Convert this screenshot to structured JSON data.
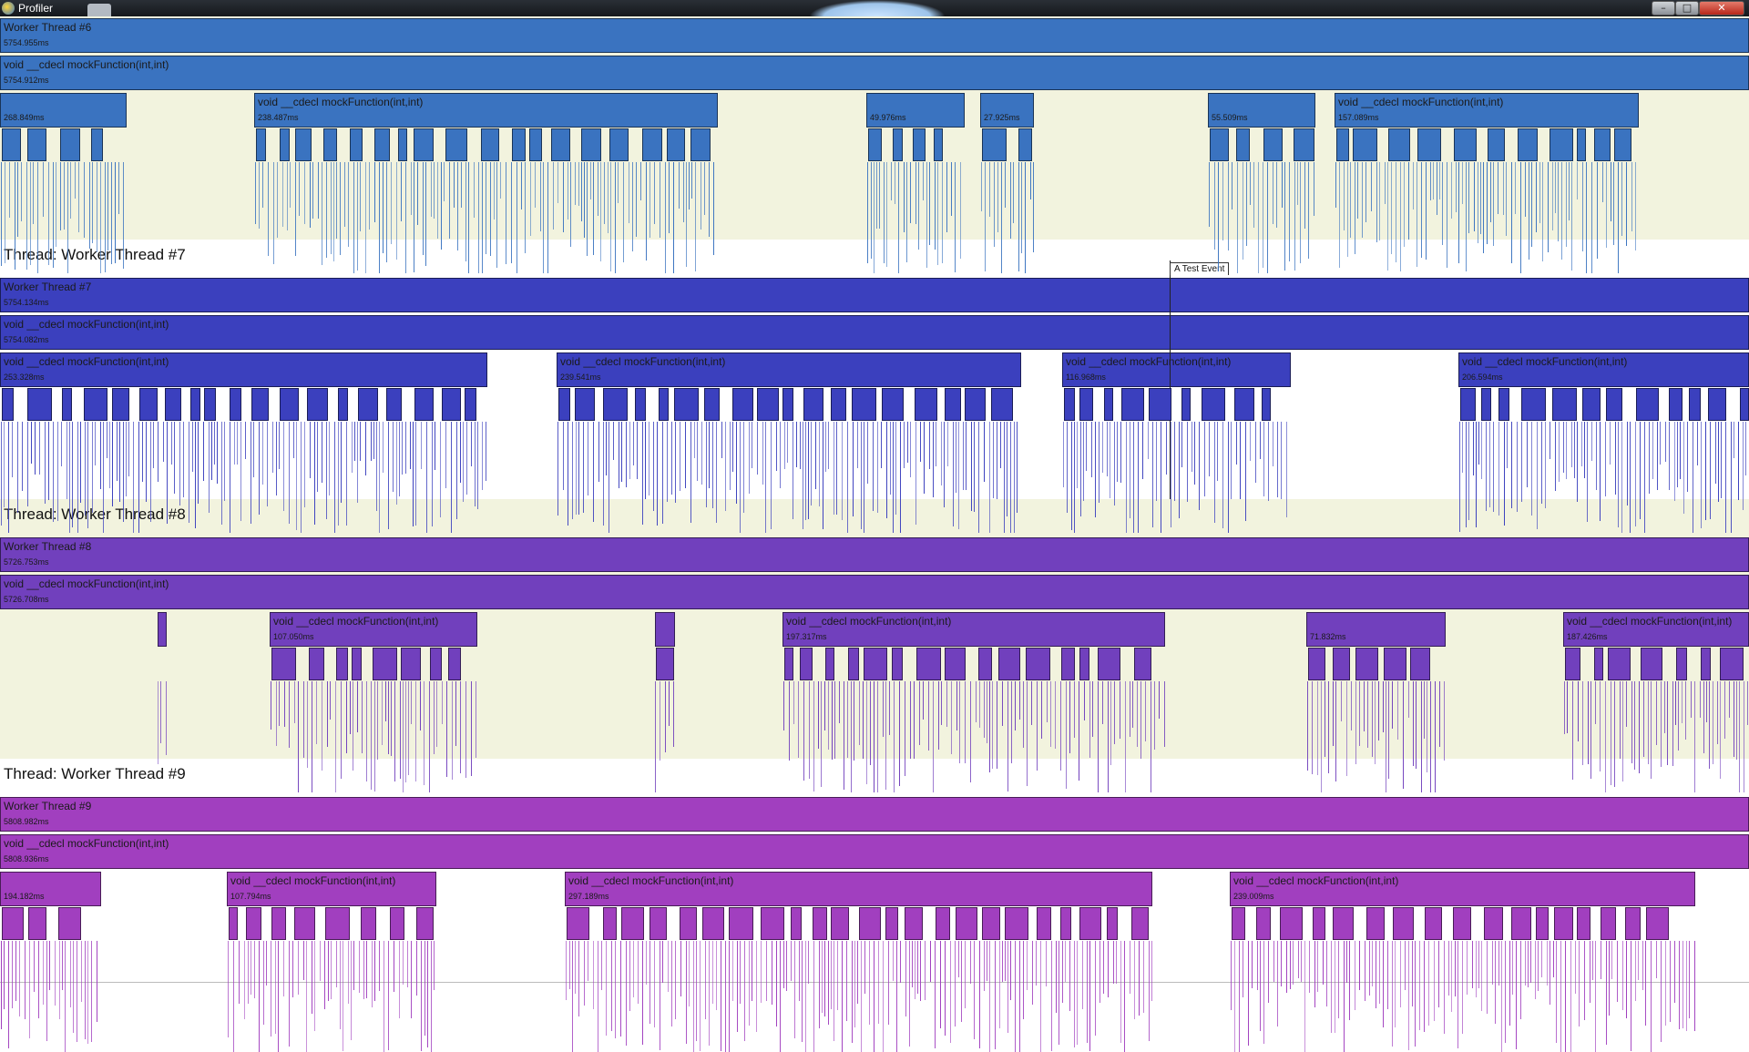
{
  "window": {
    "title": "Profiler",
    "buttons": {
      "minimize": "–",
      "maximize": "□",
      "close": "✕"
    }
  },
  "colors": {
    "thread6": "#3a73c0",
    "thread7": "#3b40be",
    "thread8": "#7140bd",
    "thread9": "#a13fbf",
    "band_cream": "#f2f3de",
    "band_white": "#ffffff"
  },
  "event": {
    "label": "A Test Event"
  },
  "threads": [
    {
      "id": "6",
      "header": "",
      "bars": [
        {
          "label": "Worker Thread #6",
          "duration": "5754.955ms"
        },
        {
          "label": "void __cdecl mockFunction(int,int)",
          "duration": "5754.912ms"
        },
        {
          "label": "",
          "duration": "268.849ms"
        },
        {
          "label": "void __cdecl mockFunction(int,int)",
          "duration": "238.487ms"
        },
        {
          "label": "",
          "duration": "49.976ms"
        },
        {
          "label": "",
          "duration": "27.925ms"
        },
        {
          "label": "",
          "duration": "55.509ms"
        },
        {
          "label": "void __cdecl mockFunction(int,int)",
          "duration": "157.089ms"
        }
      ]
    },
    {
      "id": "7",
      "header": "Thread: Worker Thread #7",
      "bars": [
        {
          "label": "Worker Thread #7",
          "duration": "5754.134ms"
        },
        {
          "label": "void __cdecl mockFunction(int,int)",
          "duration": "5754.082ms"
        },
        {
          "label": "void __cdecl mockFunction(int,int)",
          "duration": "253.328ms"
        },
        {
          "label": "void __cdecl mockFunction(int,int)",
          "duration": "239.541ms"
        },
        {
          "label": "void __cdecl mockFunction(int,int)",
          "duration": "116.968ms"
        },
        {
          "label": "void __cdecl mockFunction(int,int)",
          "duration": "206.594ms"
        }
      ]
    },
    {
      "id": "8",
      "header": "Thread: Worker Thread #8",
      "bars": [
        {
          "label": "Worker Thread #8",
          "duration": "5726.753ms"
        },
        {
          "label": "void __cdecl mockFunction(int,int)",
          "duration": "5726.708ms"
        },
        {
          "label": "void __cdecl mockFunction(int,int)",
          "duration": "107.050ms"
        },
        {
          "label": "void __cdecl mockFunction(int,int)",
          "duration": "197.317ms"
        },
        {
          "label": "",
          "duration": "71.832ms"
        },
        {
          "label": "void __cdecl mockFunction(int,int)",
          "duration": "187.426ms"
        }
      ]
    },
    {
      "id": "9",
      "header": "Thread: Worker Thread #9",
      "bars": [
        {
          "label": "Worker Thread #9",
          "duration": "5808.982ms"
        },
        {
          "label": "void __cdecl mockFunction(int,int)",
          "duration": "5808.936ms"
        },
        {
          "label": "",
          "duration": "194.182ms"
        },
        {
          "label": "void __cdecl mockFunction(int,int)",
          "duration": "107.794ms"
        },
        {
          "label": "void __cdecl mockFunction(int,int)",
          "duration": "297.189ms"
        },
        {
          "label": "void __cdecl mockFunction(int,int)",
          "duration": "239.009ms"
        }
      ]
    }
  ]
}
